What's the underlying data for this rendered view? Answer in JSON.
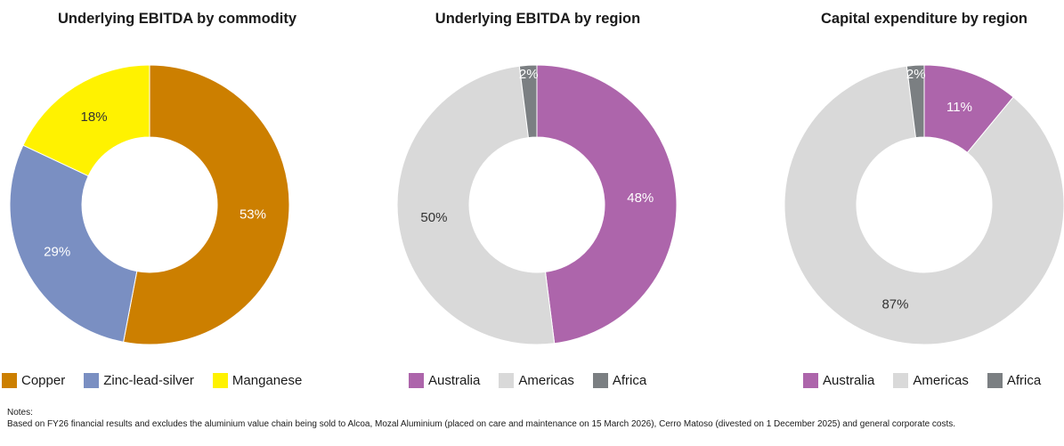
{
  "notes": {
    "heading": "Notes:",
    "text": "Based on FY26 financial results and excludes the aluminium value chain being sold to Alcoa, Mozal Aluminium (placed on care and maintenance on 15 March 2026), Cerro Matoso (divested on 1 December 2025) and general corporate costs."
  },
  "chart_data": [
    {
      "type": "pie",
      "donut": true,
      "title": "Underlying EBITDA by commodity",
      "categories": [
        "Copper",
        "Zinc-lead-silver",
        "Manganese"
      ],
      "values": [
        53,
        29,
        18
      ],
      "labels": [
        "53%",
        "29%",
        "18%"
      ],
      "colors": [
        "#cc7f00",
        "#7a8fc2",
        "#fff200"
      ],
      "label_colors": [
        "#ffffff",
        "#ffffff",
        "#333333"
      ],
      "legend": "bottom"
    },
    {
      "type": "pie",
      "donut": true,
      "title": "Underlying EBITDA by region",
      "categories": [
        "Australia",
        "Americas",
        "Africa"
      ],
      "values": [
        48,
        50,
        2
      ],
      "labels": [
        "48%",
        "50%",
        "2%"
      ],
      "colors": [
        "#ad65ab",
        "#d9d9d9",
        "#7b7f82"
      ],
      "label_colors": [
        "#ffffff",
        "#333333",
        "#ffffff"
      ],
      "legend": "bottom"
    },
    {
      "type": "pie",
      "donut": true,
      "title": "Capital expenditure by region",
      "categories": [
        "Australia",
        "Americas",
        "Africa"
      ],
      "values": [
        11,
        87,
        2
      ],
      "labels": [
        "11%",
        "87%",
        "2%"
      ],
      "colors": [
        "#ad65ab",
        "#d9d9d9",
        "#7b7f82"
      ],
      "label_colors": [
        "#ffffff",
        "#333333",
        "#ffffff"
      ],
      "legend": "bottom"
    }
  ]
}
